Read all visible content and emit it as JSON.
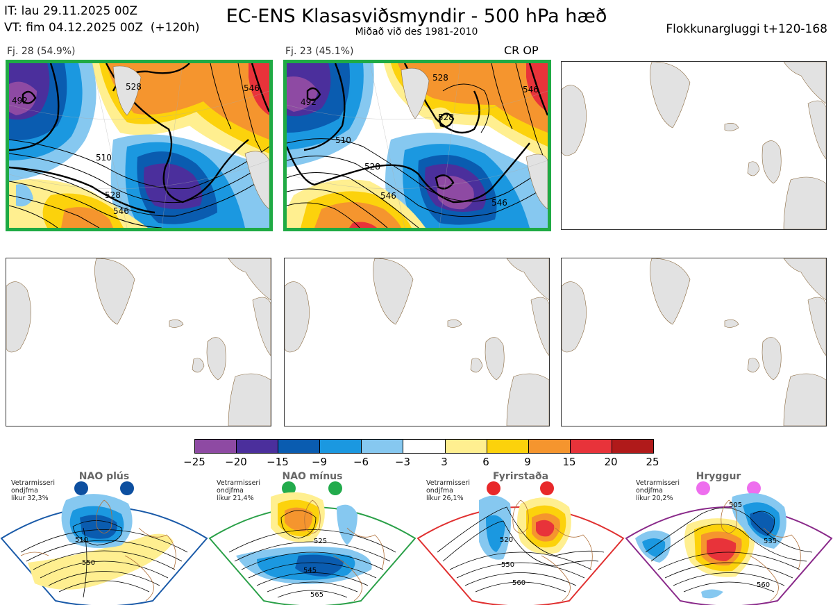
{
  "header": {
    "it_line": "IT: lau 29.11.2025 00Z",
    "vt_line": "VT: fim 04.12.2025 00Z  (+120h)",
    "title": "EC-ENS Klasasviðsmyndir - 500 hPa hæð",
    "subtitle": "Miðað við des 1981-2010",
    "window": "Flokkunargluggi t+120-168"
  },
  "panels": [
    {
      "label": "Fj. 28 (54.9%)",
      "active": true,
      "contours": [
        "492",
        "528",
        "546",
        "510",
        "528",
        "546"
      ]
    },
    {
      "label": "Fj. 23 (45.1%)",
      "extra": "CR OP",
      "active": true,
      "contours": [
        "492",
        "528",
        "546",
        "510",
        "528",
        "528",
        "546",
        "546"
      ]
    },
    {
      "label": "",
      "active": false
    },
    {
      "label": "",
      "active": false
    },
    {
      "label": "",
      "active": false
    },
    {
      "label": "",
      "active": false
    }
  ],
  "colorbar": {
    "ticks": [
      "−25",
      "−20",
      "−15",
      "−9",
      "−6",
      "−3",
      "3",
      "6",
      "9",
      "15",
      "20",
      "25"
    ],
    "colors": [
      "#8e4aa3",
      "#4b2f9c",
      "#0a5cb0",
      "#1b98e0",
      "#86c8f0",
      "#ffffff",
      "#ffef90",
      "#fcd20c",
      "#f5952e",
      "#e8333a",
      "#b01a1a"
    ]
  },
  "regimes": [
    {
      "name": "NAO plús",
      "note_line1": "Vetrarmisseri",
      "note_line2": "ondjfma",
      "note_line3": "líkur 32,3%",
      "color": "#1a5aa8",
      "dot": "#0d4fa0",
      "contours": [
        "510",
        "550"
      ]
    },
    {
      "name": "NAO mínus",
      "note_line1": "Vetrarmisseri",
      "note_line2": "ondjfma",
      "note_line3": "líkur 21,4%",
      "color": "#2aa048",
      "dot": "#22ab4c",
      "contours": [
        "525",
        "545",
        "565"
      ]
    },
    {
      "name": "Fyrirstaða",
      "note_line1": "Vetrarmisseri",
      "note_line2": "ondjfma",
      "note_line3": "líkur 26,1%",
      "color": "#e03030",
      "dot": "#e8282a",
      "contours": [
        "520",
        "550",
        "560"
      ]
    },
    {
      "name": "Hryggur",
      "note_line1": "Vetrarmisseri",
      "note_line2": "ondjfma",
      "note_line3": "líkur 20,2%",
      "color": "#8a2a8a",
      "dot": "#ee6eee",
      "contours": [
        "505",
        "535",
        "560"
      ]
    }
  ]
}
